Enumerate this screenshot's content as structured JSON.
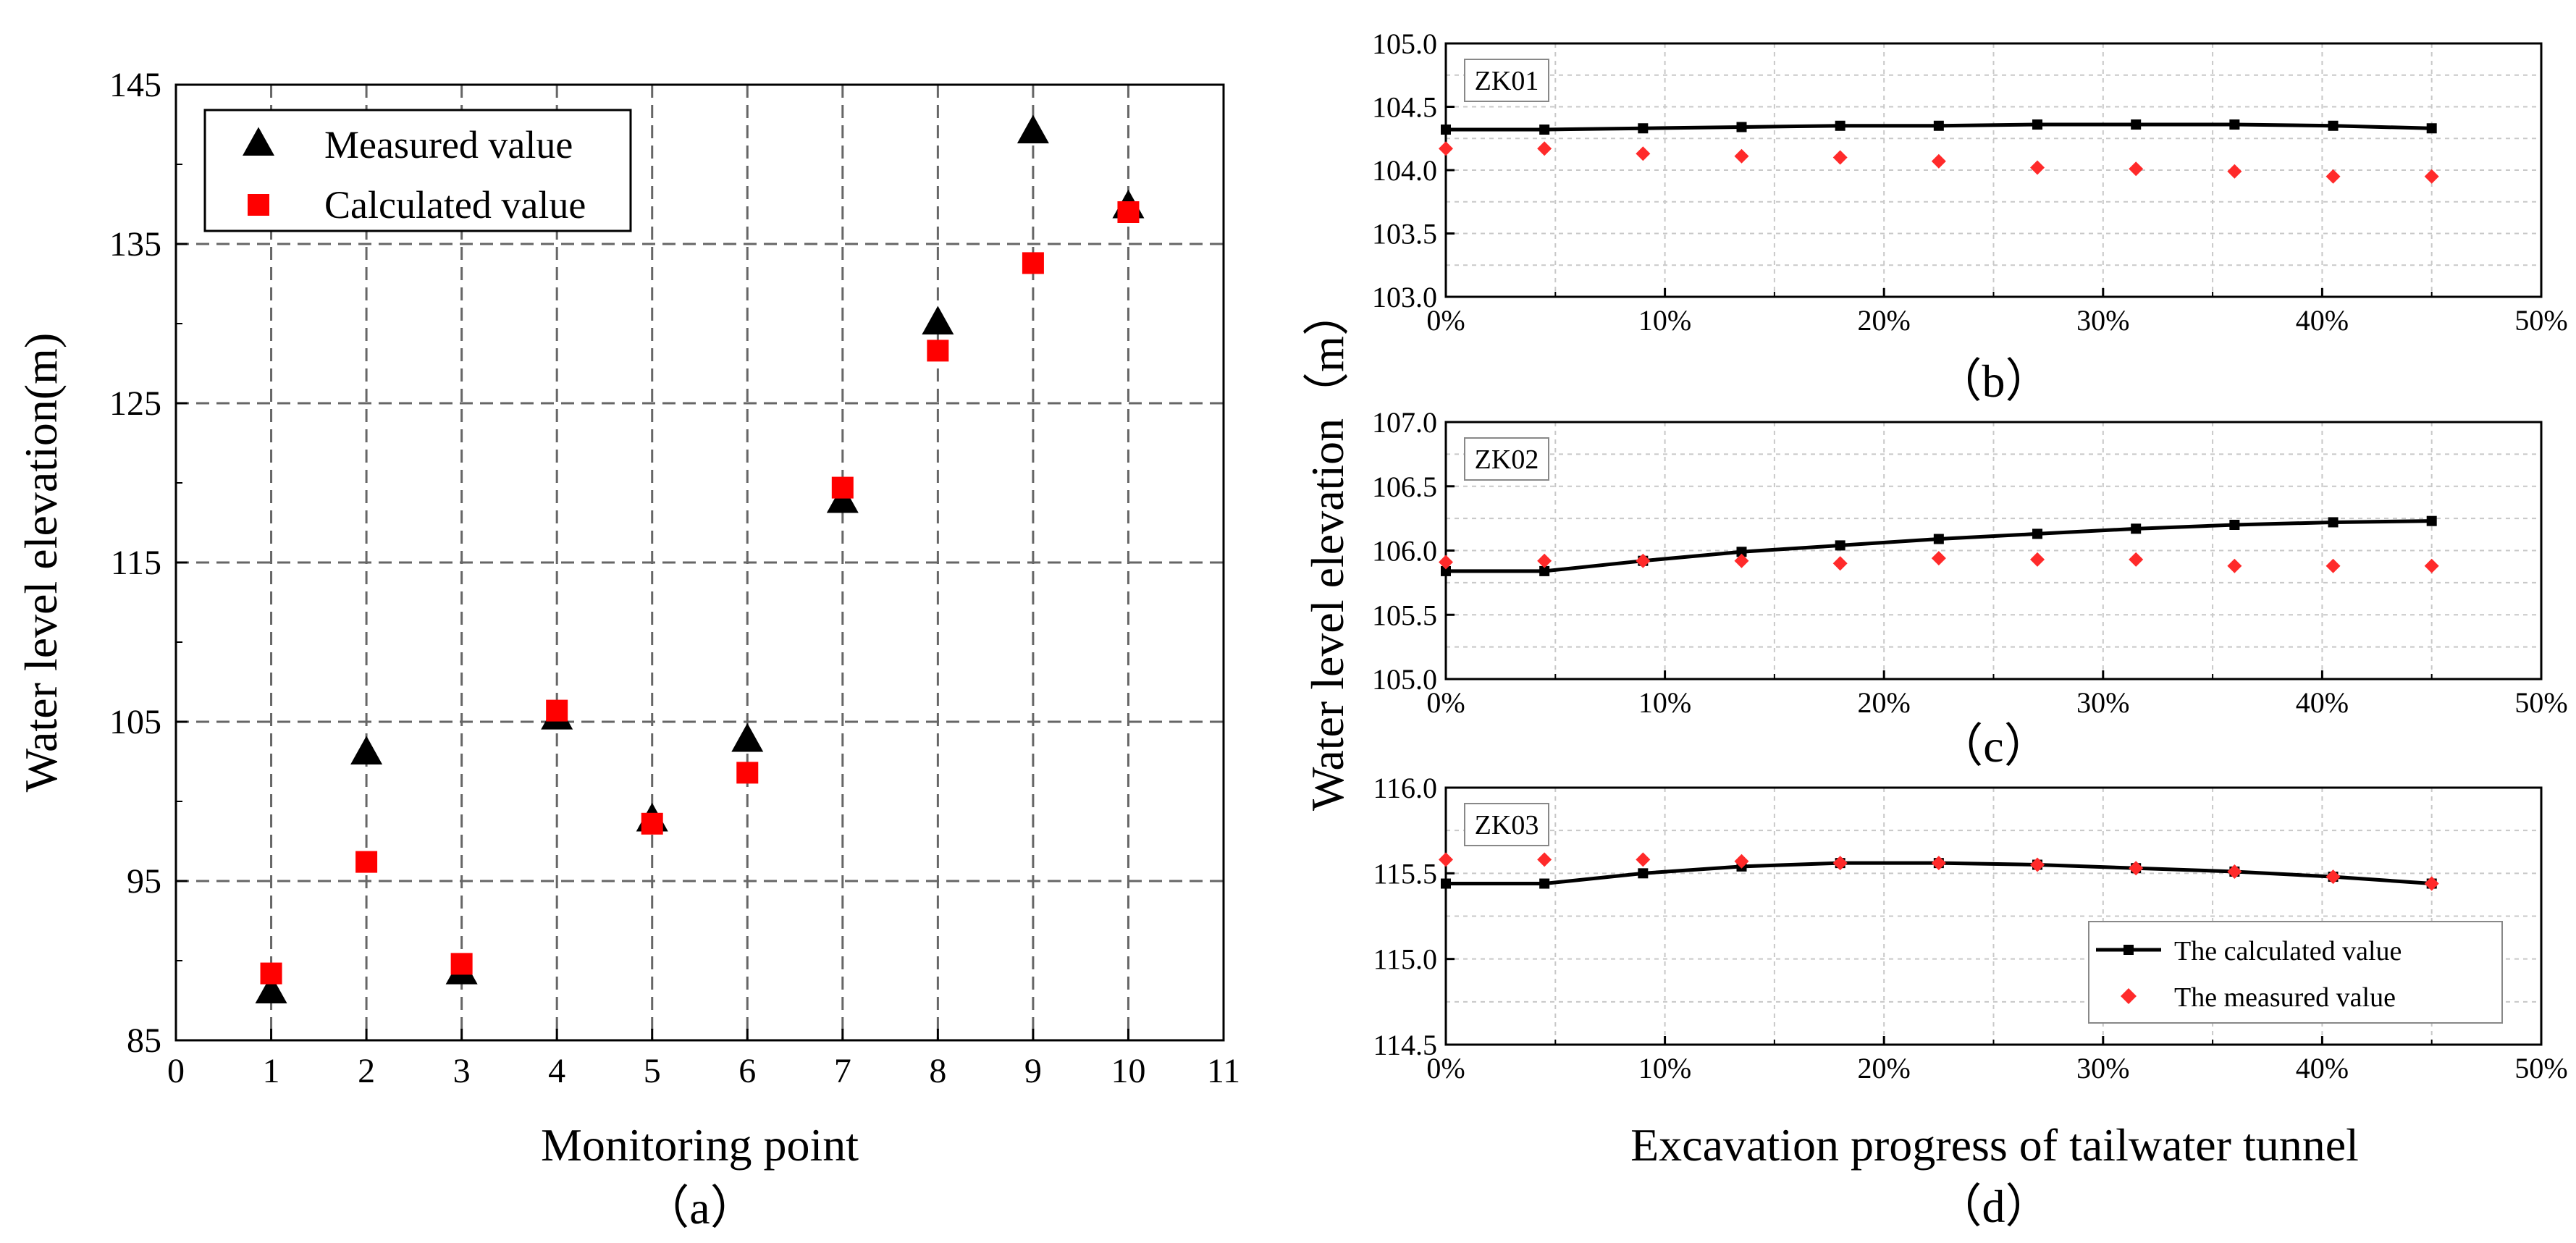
{
  "chart_data": [
    {
      "id": "a",
      "type": "scatter",
      "panel_caption": "（a）",
      "xlabel": "Monitoring point",
      "ylabel": "Water level elevation(m)",
      "xlim": [
        0,
        11
      ],
      "ylim": [
        85,
        145
      ],
      "xticks": [
        "0",
        "1",
        "2",
        "3",
        "4",
        "5",
        "6",
        "7",
        "8",
        "9",
        "10",
        "11"
      ],
      "yticks": [
        "85",
        "95",
        "105",
        "115",
        "125",
        "135",
        "145"
      ],
      "grid": true,
      "legend_position": "top-left",
      "series": [
        {
          "name": "Measured value",
          "marker": "triangle",
          "color": "#000000",
          "x": [
            1,
            2,
            3,
            4,
            5,
            6,
            7,
            8,
            9,
            10
          ],
          "y": [
            88,
            103,
            89.2,
            105.2,
            98.8,
            103.8,
            118.8,
            130,
            142,
            137.3
          ]
        },
        {
          "name": "Calculated value",
          "marker": "square",
          "color": "#ff0000",
          "x": [
            1,
            2,
            3,
            4,
            5,
            6,
            7,
            8,
            9,
            10
          ],
          "y": [
            89.2,
            96.2,
            89.8,
            105.7,
            98.6,
            101.8,
            119.7,
            128.3,
            133.8,
            137
          ]
        }
      ]
    },
    {
      "id": "b",
      "type": "line",
      "panel_caption": "（b）",
      "label": "ZK01",
      "xlim": [
        0,
        50
      ],
      "ylim": [
        103.0,
        105.0
      ],
      "xticks": [
        "0%",
        "10%",
        "20%",
        "30%",
        "40%",
        "50%"
      ],
      "yticks": [
        "103.0",
        "103.5",
        "104.0",
        "104.5",
        "105.0"
      ],
      "grid": true,
      "x": [
        0,
        4.5,
        9,
        13.5,
        18,
        22.5,
        27,
        31.5,
        36,
        40.5,
        45
      ],
      "series": [
        {
          "name": "The calculated value",
          "marker": "square",
          "color": "#000000",
          "values": [
            104.32,
            104.32,
            104.33,
            104.34,
            104.35,
            104.35,
            104.36,
            104.36,
            104.36,
            104.35,
            104.33
          ]
        },
        {
          "name": "The measured value",
          "marker": "diamond",
          "color": "#ff2a2a",
          "values": [
            104.17,
            104.17,
            104.13,
            104.11,
            104.1,
            104.07,
            104.02,
            104.01,
            103.99,
            103.95,
            103.95
          ]
        }
      ]
    },
    {
      "id": "c",
      "type": "line",
      "panel_caption": "（c）",
      "label": "ZK02",
      "xlim": [
        0,
        50
      ],
      "ylim": [
        105.0,
        107.0
      ],
      "xticks": [
        "0%",
        "10%",
        "20%",
        "30%",
        "40%",
        "50%"
      ],
      "yticks": [
        "105.0",
        "105.5",
        "106.0",
        "106.5",
        "107.0"
      ],
      "grid": true,
      "x": [
        0,
        4.5,
        9,
        13.5,
        18,
        22.5,
        27,
        31.5,
        36,
        40.5,
        45
      ],
      "series": [
        {
          "name": "The calculated value",
          "marker": "square",
          "color": "#000000",
          "values": [
            105.84,
            105.84,
            105.92,
            105.99,
            106.04,
            106.09,
            106.13,
            106.17,
            106.2,
            106.22,
            106.23
          ]
        },
        {
          "name": "The measured value",
          "marker": "diamond",
          "color": "#ff2a2a",
          "values": [
            105.91,
            105.92,
            105.92,
            105.92,
            105.9,
            105.94,
            105.93,
            105.93,
            105.88,
            105.88,
            105.88
          ]
        }
      ]
    },
    {
      "id": "d",
      "type": "line",
      "panel_caption": "（d）",
      "label": "ZK03",
      "xlim": [
        0,
        50
      ],
      "ylim": [
        114.5,
        116.0
      ],
      "xticks": [
        "0%",
        "10%",
        "20%",
        "30%",
        "40%",
        "50%"
      ],
      "yticks": [
        "114.5",
        "115.0",
        "115.5",
        "116.0"
      ],
      "grid": true,
      "legend_position": "bottom-right",
      "x": [
        0,
        4.5,
        9,
        13.5,
        18,
        22.5,
        27,
        31.5,
        36,
        40.5,
        45
      ],
      "series": [
        {
          "name": "The calculated value",
          "marker": "square",
          "color": "#000000",
          "values": [
            115.44,
            115.44,
            115.5,
            115.54,
            115.56,
            115.56,
            115.55,
            115.53,
            115.51,
            115.48,
            115.44
          ]
        },
        {
          "name": "The measured value",
          "marker": "diamond",
          "color": "#ff2a2a",
          "values": [
            115.58,
            115.58,
            115.58,
            115.57,
            115.56,
            115.56,
            115.55,
            115.53,
            115.51,
            115.48,
            115.44
          ]
        }
      ]
    }
  ],
  "right_shared": {
    "ylabel": "Water level elevation（m）",
    "xlabel": "Excavation progress of tailwater tunnel"
  }
}
